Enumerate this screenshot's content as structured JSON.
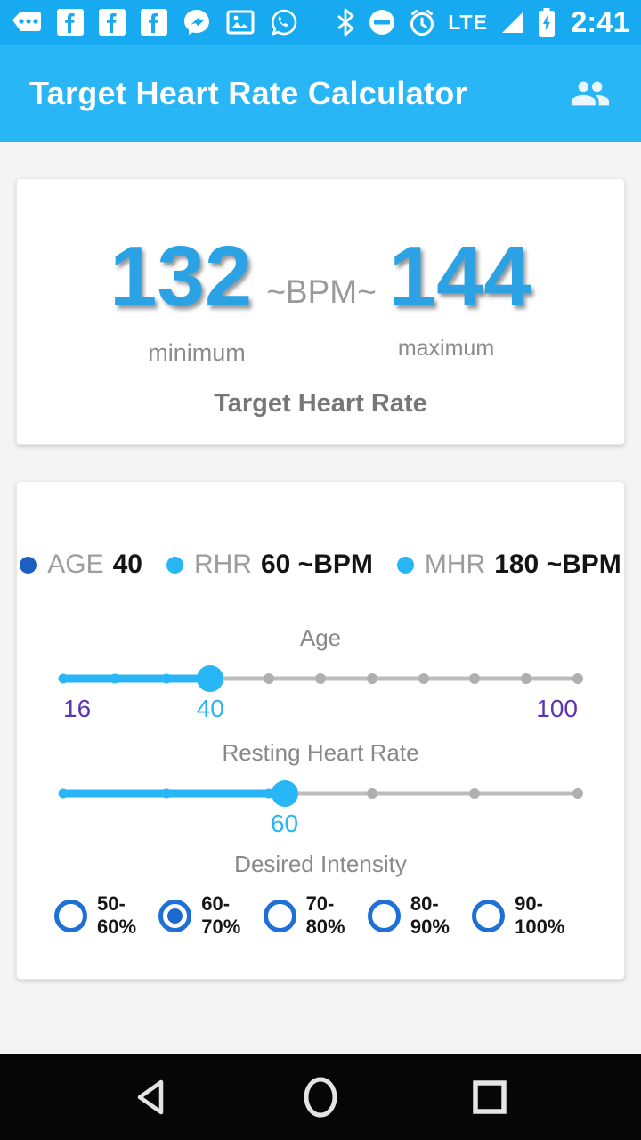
{
  "status_bar": {
    "time": "2:41",
    "lte": "LTE",
    "notification_icons": [
      "messages",
      "facebook",
      "facebook",
      "facebook",
      "messenger",
      "gallery",
      "whatsapp"
    ],
    "system_icons": [
      "bluetooth",
      "do-not-disturb",
      "alarm-clock",
      "lte",
      "signal",
      "battery-charging"
    ]
  },
  "app_bar": {
    "title": "Target Heart Rate Calculator",
    "action_icon": "people"
  },
  "result_card": {
    "minimum_bpm": "132",
    "maximum_bpm": "144",
    "separator": "~BPM~",
    "minimum_caption": "minimum",
    "maximum_caption": "maximum",
    "card_title": "Target Heart Rate"
  },
  "inputs_card": {
    "legend": [
      {
        "label": "AGE",
        "value": "40",
        "dot_color": "#1b5fc1"
      },
      {
        "label": "RHR",
        "value": "60 ~BPM",
        "dot_color": "#29b6f6"
      },
      {
        "label": "MHR",
        "value": "180 ~BPM",
        "dot_color": "#29b6f6"
      }
    ],
    "age_slider": {
      "label": "Age",
      "min_label": "16",
      "value_label": "40",
      "max_label": "100",
      "percent": 28.6,
      "tick_step": 10
    },
    "rhr_slider": {
      "label": "Resting Heart Rate",
      "min_label": "",
      "value_label": "60",
      "max_label": "",
      "percent": 43,
      "tick_step": 20
    },
    "intensity": {
      "label": "Desired Intensity",
      "options": [
        {
          "label": "50-60%",
          "selected": false
        },
        {
          "label": "60-70%",
          "selected": true
        },
        {
          "label": "70-80%",
          "selected": false
        },
        {
          "label": "80-90%",
          "selected": false
        },
        {
          "label": "90-100%",
          "selected": false
        }
      ]
    }
  },
  "nav_bar": {
    "icons": [
      "back",
      "home",
      "recents"
    ]
  },
  "colors": {
    "status_bar": "#18aaf0",
    "app_bar": "#29b6f6",
    "accent_blue": "#29b6f6",
    "number_blue": "#2aa2e4",
    "legend_dark_blue": "#1b5fc1",
    "radio_blue": "#1e70d6",
    "range_purple": "#5e35b1",
    "inactive_track": "#bdbdbd"
  }
}
